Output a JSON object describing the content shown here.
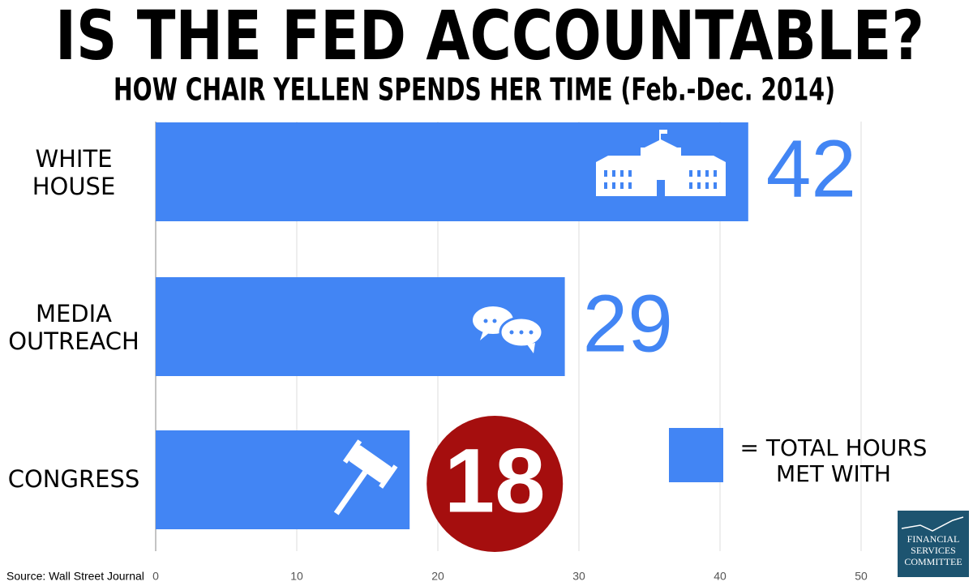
{
  "chart_data": {
    "type": "hbar",
    "title": "IS THE FED ACCOUNTABLE?",
    "subtitle": "HOW CHAIR YELLEN SPENDS HER TIME (Feb.-Dec. 2014)",
    "categories": [
      "WHITE\nHOUSE",
      "MEDIA\nOUTREACH",
      "CONGRESS"
    ],
    "series": [
      {
        "name": "= TOTAL HOURS\nMET WITH",
        "color": "#4285f4",
        "values": [
          42,
          29,
          18
        ]
      }
    ],
    "value_label_colors": [
      "#4285f4",
      "#4285f4",
      "#ffffff"
    ],
    "value_label_backgrounds": [
      null,
      null,
      "#a50e0e"
    ],
    "xlim": [
      0,
      52
    ],
    "xticks": [
      0,
      10,
      20,
      30,
      40,
      50
    ],
    "grid": true,
    "source": "Source: Wall Street Journal"
  },
  "logo": {
    "text": "FINANCIAL\nSERVICES\nCOMMITTEE"
  }
}
